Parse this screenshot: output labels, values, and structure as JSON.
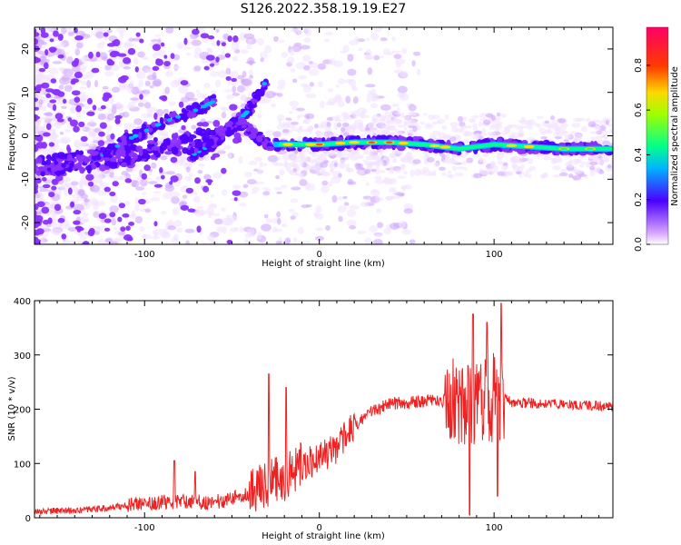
{
  "title": "S126.2022.358.19.19.E27",
  "colorbar_label": "Normalized spectral amplitude",
  "chart_data": [
    {
      "type": "heatmap",
      "xlabel": "Height of straight line (km)",
      "ylabel": "Frequency (Hz)",
      "xlim": [
        -163,
        168
      ],
      "ylim": [
        -25,
        25
      ],
      "xticks": [
        -100,
        0,
        100
      ],
      "yticks": [
        -20,
        -10,
        0,
        10,
        20
      ],
      "colorbar": {
        "range": [
          0,
          0.97
        ],
        "ticks": [
          "0.0",
          "0.2",
          "0.4",
          "0.6",
          "0.8"
        ]
      },
      "ridge": {
        "x": [
          -160,
          -140,
          -120,
          -100,
          -80,
          -60,
          -45,
          -30,
          -20,
          -10,
          0,
          20,
          40,
          60,
          80,
          100,
          120,
          140,
          168
        ],
        "y": [
          -7,
          -6,
          -5.5,
          -3.5,
          -2,
          0,
          3,
          -2,
          -2,
          -2,
          -2,
          -1.5,
          -1.5,
          -2,
          -3,
          -2,
          -2.5,
          -3,
          -3
        ]
      },
      "branches": [
        {
          "x": [
            -130,
            -110,
            -90,
            -70,
            -60
          ],
          "y": [
            -6,
            -1,
            3,
            6,
            8
          ]
        },
        {
          "x": [
            -75,
            -62,
            -50,
            -40,
            -30
          ],
          "y": [
            -5,
            -2,
            2,
            6,
            13
          ]
        }
      ]
    },
    {
      "type": "line",
      "xlabel": "Height of straight line (km)",
      "ylabel": "SNR (10 * v/v)",
      "xlim": [
        -163,
        168
      ],
      "ylim": [
        0,
        400
      ],
      "xticks": [
        -100,
        0,
        100
      ],
      "yticks": [
        0,
        100,
        200,
        300,
        400
      ],
      "color": "#ee2222",
      "trend": {
        "x": [
          -163,
          -140,
          -120,
          -100,
          -80,
          -60,
          -40,
          -30,
          -20,
          -10,
          0,
          10,
          20,
          30,
          40,
          60,
          70,
          80,
          90,
          100,
          105,
          110,
          130,
          150,
          168
        ],
        "y": [
          12,
          13,
          18,
          28,
          30,
          28,
          45,
          60,
          75,
          95,
          110,
          130,
          170,
          195,
          210,
          215,
          215,
          218,
          220,
          222,
          225,
          212,
          210,
          208,
          205
        ]
      },
      "spikes": [
        {
          "x": -83,
          "y": 105
        },
        {
          "x": -71,
          "y": 85
        },
        {
          "x": -29,
          "y": 265
        },
        {
          "x": -19,
          "y": 240
        },
        {
          "x": 88,
          "y": 375
        },
        {
          "x": 96,
          "y": 360
        },
        {
          "x": 104,
          "y": 395
        },
        {
          "x": 86,
          "y": 5
        },
        {
          "x": 102,
          "y": 40
        }
      ]
    }
  ]
}
